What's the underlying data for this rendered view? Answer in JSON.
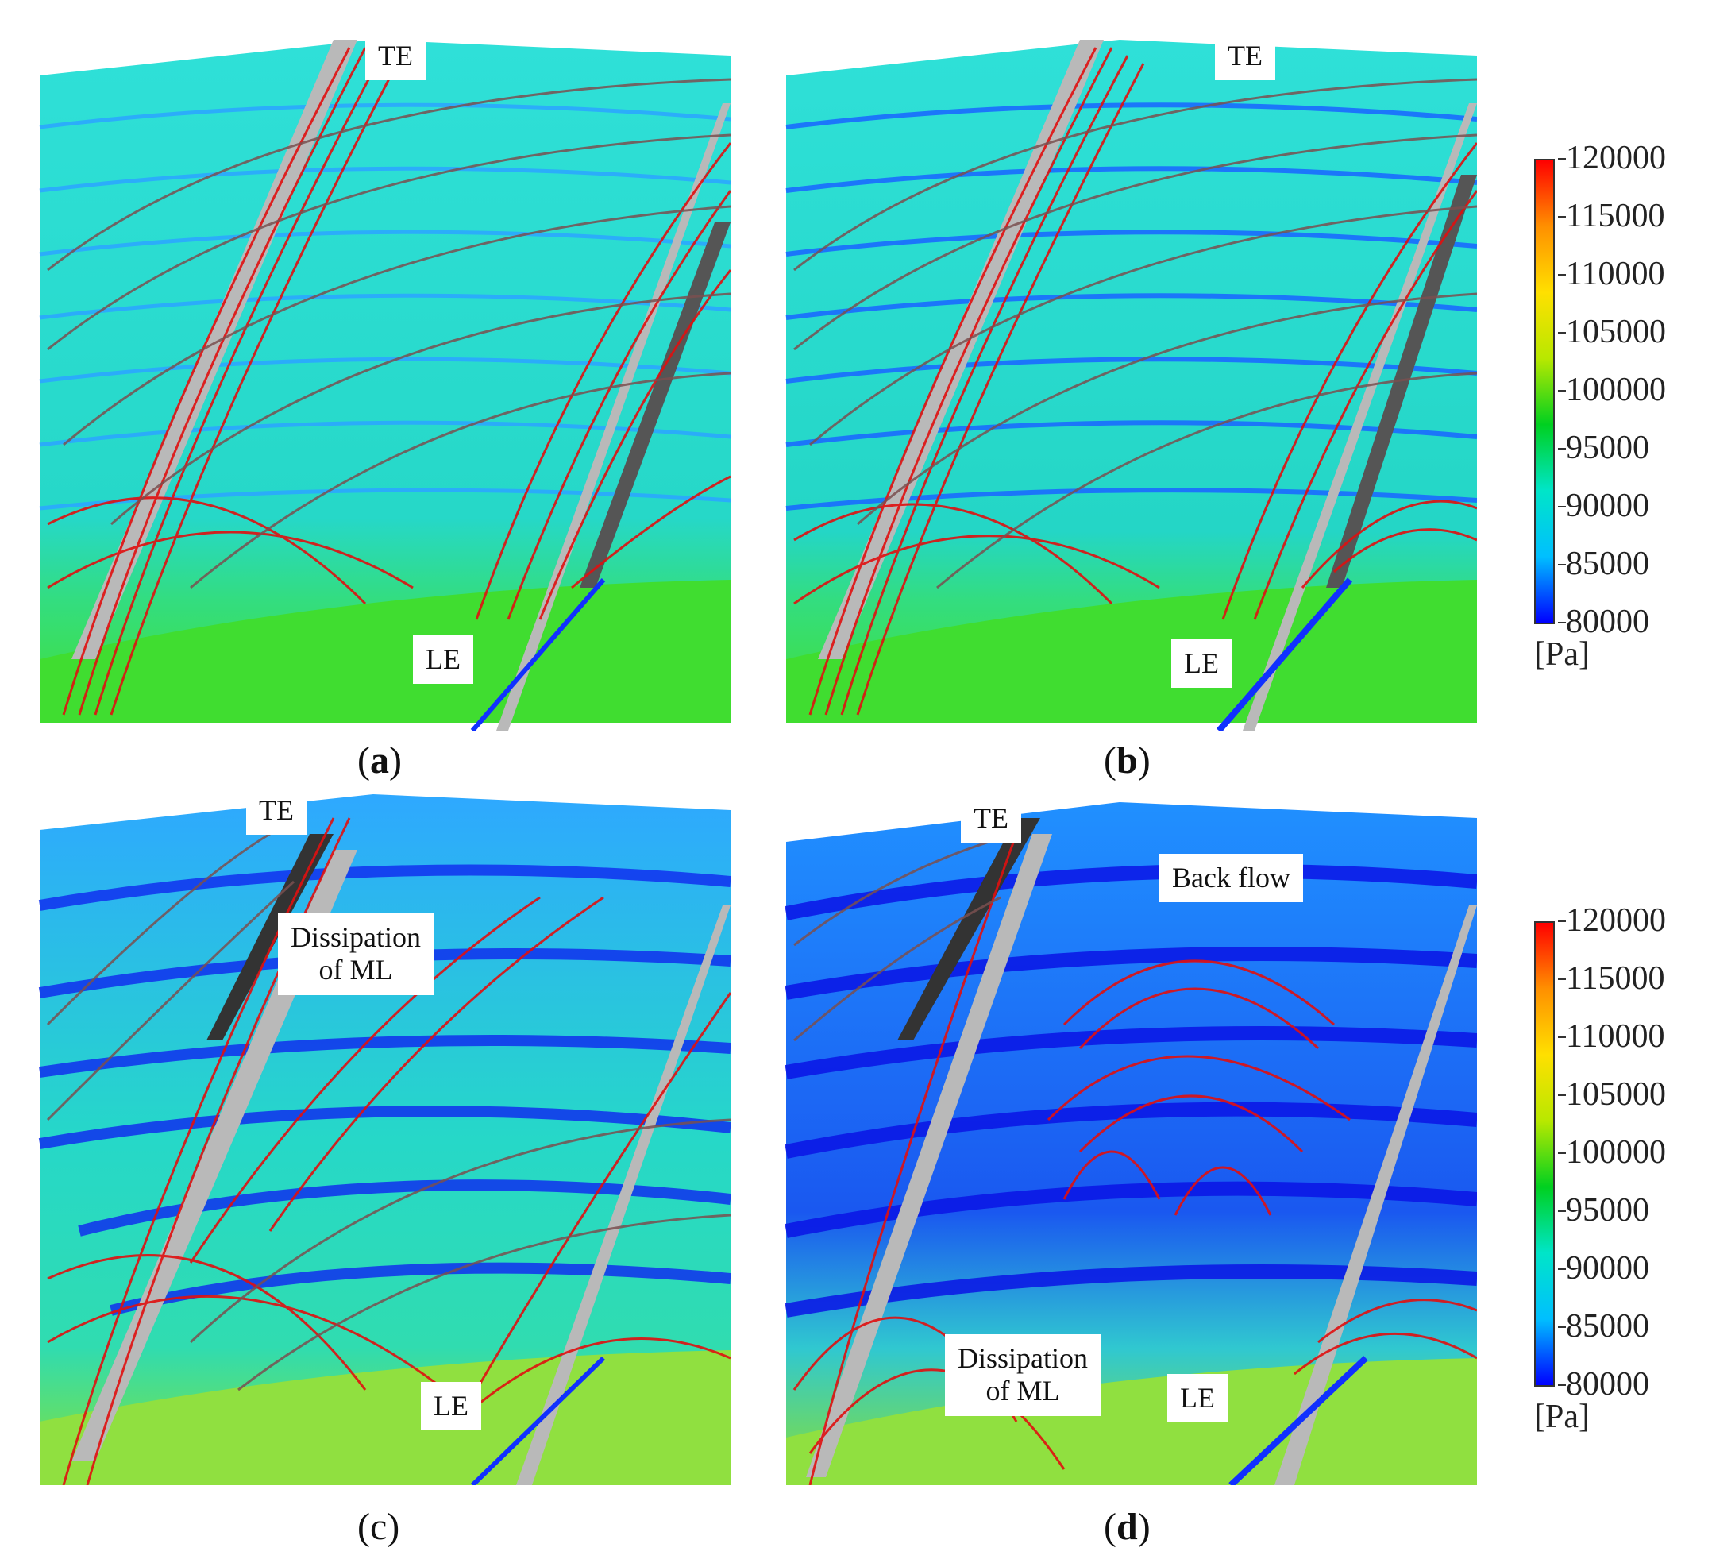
{
  "panels": [
    {
      "id": "a",
      "caption": {
        "open": "(",
        "letter": "a",
        "close": ")"
      },
      "te": "TE",
      "le": "LE"
    },
    {
      "id": "b",
      "caption": {
        "open": "(",
        "letter": "b",
        "close": ")"
      },
      "te": "TE",
      "le": "LE"
    },
    {
      "id": "c",
      "caption": {
        "open": "(",
        "letter": "c",
        "close": ")"
      },
      "te": "TE",
      "le": "LE",
      "extra": {
        "line1": "Dissipation",
        "line2": "of  ML"
      }
    },
    {
      "id": "d",
      "caption": {
        "open": "(",
        "letter": "d",
        "close": ")"
      },
      "te": "TE",
      "le": "LE",
      "extra": {
        "line1": "Dissipation",
        "line2": "of ML"
      },
      "back": "Back flow"
    }
  ],
  "colorbar": {
    "ticks": [
      "120000",
      "115000",
      "110000",
      "105000",
      "100000",
      "95000",
      "90000",
      "85000",
      "80000"
    ],
    "unit": "[Pa]",
    "colors": [
      "#0000ff",
      "#00bfff",
      "#00e5c8",
      "#00d020",
      "#b8e800",
      "#ffe000",
      "#ff9000",
      "#ff0000"
    ]
  }
}
